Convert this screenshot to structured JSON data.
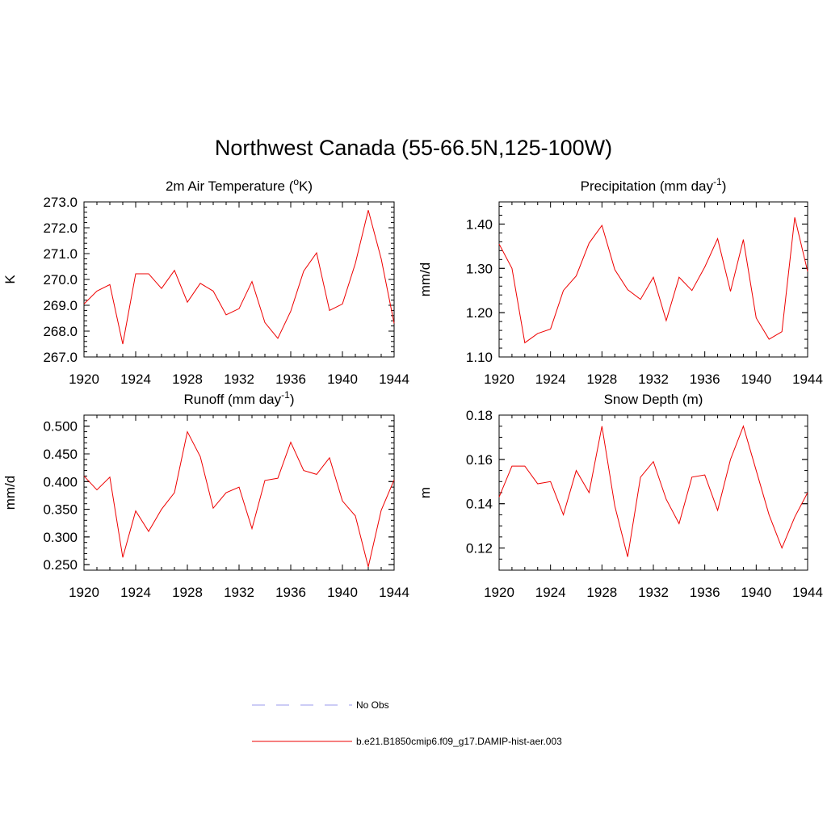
{
  "title": "Northwest Canada (55-66.5N,125-100W)",
  "chart_data": [
    {
      "type": "line",
      "title": "2m Air Temperature (oK)",
      "title_parts": {
        "pre": "2m Air Temperature (",
        "sup": "o",
        "post": "K)"
      },
      "ylabel": "K",
      "xlim": [
        1920,
        1944
      ],
      "ylim": [
        267.0,
        273.0
      ],
      "xticks": [
        1920,
        1924,
        1928,
        1932,
        1936,
        1940,
        1944
      ],
      "yticks": [
        "267.0",
        "268.0",
        "269.0",
        "270.0",
        "271.0",
        "272.0",
        "273.0"
      ],
      "y_minor_step": 0.2,
      "x": [
        1920,
        1921,
        1922,
        1923,
        1924,
        1925,
        1926,
        1927,
        1928,
        1929,
        1930,
        1931,
        1932,
        1933,
        1934,
        1935,
        1936,
        1937,
        1938,
        1939,
        1940,
        1941,
        1942,
        1943,
        1944
      ],
      "series": [
        {
          "name": "b.e21.B1850cmip6.f09_g17.DAMIP-hist-aer.003",
          "values": [
            269.05,
            269.55,
            269.8,
            267.5,
            270.22,
            270.22,
            269.65,
            270.35,
            269.12,
            269.85,
            269.55,
            268.63,
            268.87,
            269.92,
            268.33,
            267.72,
            268.77,
            270.32,
            271.03,
            268.8,
            269.05,
            270.62,
            272.68,
            270.8,
            268.3
          ]
        }
      ]
    },
    {
      "type": "line",
      "title": "Precipitation (mm day-1)",
      "title_parts": {
        "pre": "Precipitation (mm day",
        "sup": "-1",
        "post": ")"
      },
      "ylabel": "mm/d",
      "xlim": [
        1920,
        1944
      ],
      "ylim": [
        1.1,
        1.45
      ],
      "xticks": [
        1920,
        1924,
        1928,
        1932,
        1936,
        1940,
        1944
      ],
      "yticks": [
        "1.10",
        "1.20",
        "1.30",
        "1.40"
      ],
      "y_minor_step": 0.02,
      "x": [
        1920,
        1921,
        1922,
        1923,
        1924,
        1925,
        1926,
        1927,
        1928,
        1929,
        1930,
        1931,
        1932,
        1933,
        1934,
        1935,
        1936,
        1937,
        1938,
        1939,
        1940,
        1941,
        1942,
        1943,
        1944
      ],
      "series": [
        {
          "name": "b.e21.B1850cmip6.f09_g17.DAMIP-hist-aer.003",
          "values": [
            1.355,
            1.3,
            1.132,
            1.153,
            1.163,
            1.25,
            1.283,
            1.357,
            1.397,
            1.297,
            1.252,
            1.23,
            1.28,
            1.182,
            1.28,
            1.25,
            1.303,
            1.367,
            1.248,
            1.365,
            1.188,
            1.14,
            1.157,
            1.415,
            1.293
          ]
        }
      ]
    },
    {
      "type": "line",
      "title": "Runoff (mm day-1)",
      "title_parts": {
        "pre": "Runoff (mm day",
        "sup": "-1",
        "post": ")"
      },
      "ylabel": "mm/d",
      "xlim": [
        1920,
        1944
      ],
      "ylim": [
        0.24,
        0.52
      ],
      "xticks": [
        1920,
        1924,
        1928,
        1932,
        1936,
        1940,
        1944
      ],
      "yticks": [
        "0.250",
        "0.300",
        "0.350",
        "0.400",
        "0.450",
        "0.500"
      ],
      "y_minor_step": 0.01,
      "x": [
        1920,
        1921,
        1922,
        1923,
        1924,
        1925,
        1926,
        1927,
        1928,
        1929,
        1930,
        1931,
        1932,
        1933,
        1934,
        1935,
        1936,
        1937,
        1938,
        1939,
        1940,
        1941,
        1942,
        1943,
        1944
      ],
      "series": [
        {
          "name": "b.e21.B1850cmip6.f09_g17.DAMIP-hist-aer.003",
          "values": [
            0.41,
            0.385,
            0.408,
            0.263,
            0.347,
            0.31,
            0.35,
            0.38,
            0.49,
            0.445,
            0.352,
            0.38,
            0.39,
            0.315,
            0.402,
            0.406,
            0.471,
            0.42,
            0.413,
            0.443,
            0.365,
            0.338,
            0.246,
            0.348,
            0.403
          ]
        }
      ]
    },
    {
      "type": "line",
      "title": "Snow Depth (m)",
      "title_parts": {
        "pre": "Snow Depth (m)",
        "sup": "",
        "post": ""
      },
      "ylabel": "m",
      "xlim": [
        1920,
        1944
      ],
      "ylim": [
        0.11,
        0.18
      ],
      "xticks": [
        1920,
        1924,
        1928,
        1932,
        1936,
        1940,
        1944
      ],
      "yticks": [
        "0.12",
        "0.14",
        "0.16",
        "0.18"
      ],
      "y_minor_step": 0.005,
      "x": [
        1920,
        1921,
        1922,
        1923,
        1924,
        1925,
        1926,
        1927,
        1928,
        1929,
        1930,
        1931,
        1932,
        1933,
        1934,
        1935,
        1936,
        1937,
        1938,
        1939,
        1940,
        1941,
        1942,
        1943,
        1944
      ],
      "series": [
        {
          "name": "b.e21.B1850cmip6.f09_g17.DAMIP-hist-aer.003",
          "values": [
            0.143,
            0.157,
            0.157,
            0.149,
            0.15,
            0.135,
            0.155,
            0.145,
            0.175,
            0.139,
            0.116,
            0.152,
            0.159,
            0.142,
            0.131,
            0.152,
            0.153,
            0.137,
            0.16,
            0.175,
            0.155,
            0.135,
            0.12,
            0.134,
            0.145
          ]
        }
      ]
    }
  ],
  "legend": [
    {
      "label": "No Obs",
      "color": "#9999ee",
      "style": "dashed"
    },
    {
      "label": "b.e21.B1850cmip6.f09_g17.DAMIP-hist-aer.003",
      "color": "#ee0000",
      "style": "solid"
    }
  ],
  "colors": {
    "series": "#ee0000",
    "obs": "#9999ee",
    "axes": "#000000"
  }
}
